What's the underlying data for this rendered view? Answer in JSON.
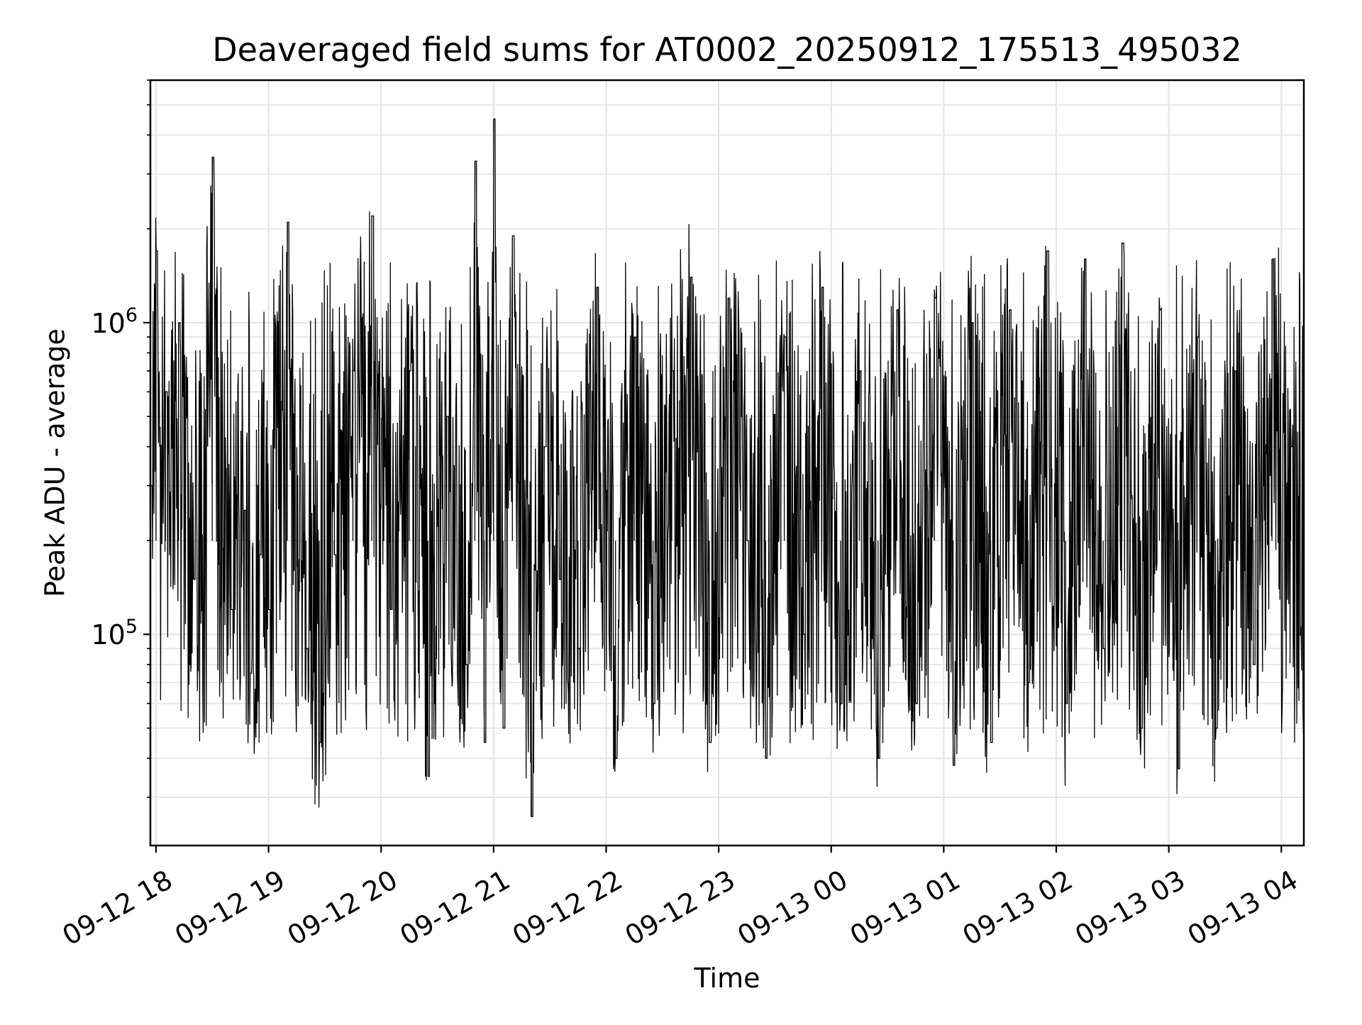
{
  "chart_data": {
    "type": "line",
    "title": "Deaveraged field sums for AT0002_20250912_175513_495032",
    "xlabel": "Time",
    "ylabel": "Peak ADU - average",
    "yscale": "log",
    "ylim": [
      21000,
      6000000
    ],
    "xlim": [
      "2025-09-12 17:57",
      "2025-09-13 04:12"
    ],
    "grid": true,
    "x_tick_labels": [
      "09-12 18",
      "09-12 19",
      "09-12 20",
      "09-12 21",
      "09-12 22",
      "09-12 23",
      "09-13 00",
      "09-13 01",
      "09-13 02",
      "09-13 03",
      "09-13 04"
    ],
    "y_tick_labels": [
      {
        "base": "10",
        "exp": "5"
      },
      {
        "base": "10",
        "exp": "6"
      }
    ],
    "series_color": "#000000",
    "series": [
      {
        "x": [
          "2025-09-12 17:57",
          "2025-09-12 18:00",
          "2025-09-12 18:05",
          "2025-09-12 18:12",
          "2025-09-12 18:20",
          "2025-09-12 18:30",
          "2025-09-12 18:40",
          "2025-09-12 18:47",
          "2025-09-12 18:50",
          "2025-09-12 18:55",
          "2025-09-12 19:00",
          "2025-09-12 19:10",
          "2025-09-12 19:20",
          "2025-09-12 19:27",
          "2025-09-12 19:35",
          "2025-09-12 19:45",
          "2025-09-12 19:55",
          "2025-09-12 20:05",
          "2025-09-12 20:15",
          "2025-09-12 20:25",
          "2025-09-12 20:35",
          "2025-09-12 20:45",
          "2025-09-12 20:50",
          "2025-09-12 20:55",
          "2025-09-12 21:00",
          "2025-09-12 21:05",
          "2025-09-12 21:10",
          "2025-09-12 21:20",
          "2025-09-12 21:27",
          "2025-09-12 21:35",
          "2025-09-12 21:45",
          "2025-09-12 21:55",
          "2025-09-12 22:05",
          "2025-09-12 22:15",
          "2025-09-12 22:25",
          "2025-09-12 22:35",
          "2025-09-12 22:45",
          "2025-09-12 22:55",
          "2025-09-12 23:05",
          "2025-09-12 23:15",
          "2025-09-12 23:25",
          "2025-09-12 23:35",
          "2025-09-12 23:45",
          "2025-09-12 23:55",
          "2025-09-13 00:05",
          "2025-09-13 00:15",
          "2025-09-13 00:25",
          "2025-09-13 00:35",
          "2025-09-13 00:45",
          "2025-09-13 00:55",
          "2025-09-13 01:05",
          "2025-09-13 01:15",
          "2025-09-13 01:25",
          "2025-09-13 01:35",
          "2025-09-13 01:45",
          "2025-09-13 01:55",
          "2025-09-13 02:05",
          "2025-09-13 02:15",
          "2025-09-13 02:25",
          "2025-09-13 02:35",
          "2025-09-13 02:45",
          "2025-09-13 02:55",
          "2025-09-13 03:05",
          "2025-09-13 03:15",
          "2025-09-13 03:25",
          "2025-09-13 03:35",
          "2025-09-13 03:45",
          "2025-09-13 03:55",
          "2025-09-13 04:05",
          "2025-09-13 04:12"
        ],
        "y": [
          300000,
          1700000,
          600000,
          1000000,
          150000,
          3400000,
          120000,
          250000,
          75000,
          180000,
          120000,
          2100000,
          90000,
          45000,
          180000,
          700000,
          2200000,
          120000,
          700000,
          35000,
          500000,
          80000,
          3300000,
          45000,
          4500000,
          50000,
          1900000,
          26000,
          400000,
          150000,
          90000,
          1300000,
          40000,
          900000,
          60000,
          700000,
          1400000,
          45000,
          1200000,
          200000,
          40000,
          900000,
          100000,
          1300000,
          60000,
          700000,
          40000,
          1100000,
          60000,
          1200000,
          38000,
          1000000,
          45000,
          1100000,
          70000,
          1700000,
          60000,
          1600000,
          90000,
          1800000,
          50000,
          1100000,
          37000,
          900000,
          50000,
          700000,
          80000,
          1600000,
          400000,
          50000
        ]
      }
    ]
  }
}
